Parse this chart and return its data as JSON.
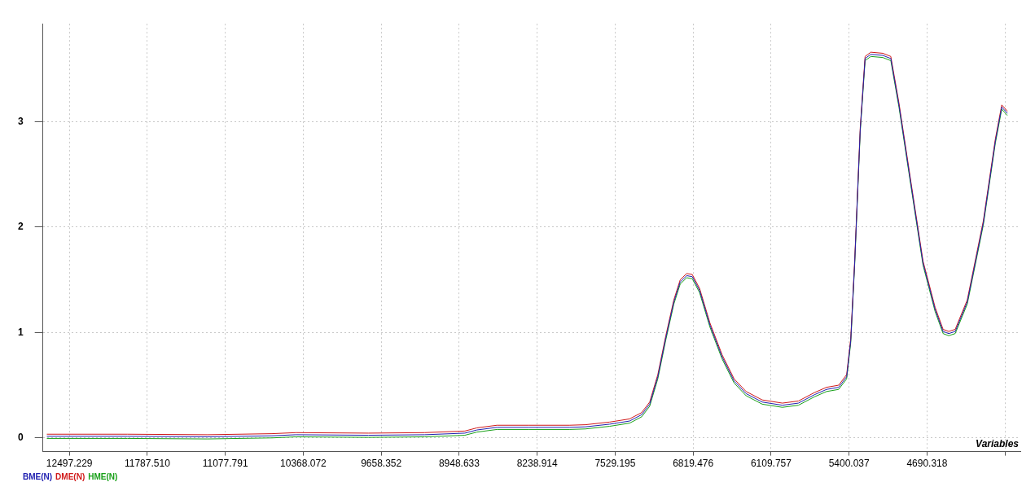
{
  "chart_data": {
    "type": "line",
    "xlabel": "Variables",
    "x": [
      12702,
      11970,
      11239,
      10653,
      10434,
      9775,
      9263,
      8897,
      8788,
      8605,
      8312,
      7946,
      7800,
      7580,
      7398,
      7288,
      7215,
      7141,
      7068,
      6995,
      6937,
      6878,
      6827,
      6761,
      6666,
      6556,
      6446,
      6337,
      6190,
      6007,
      5861,
      5715,
      5605,
      5495,
      5422,
      5385,
      5349,
      5298,
      5254,
      5202,
      5093,
      5020,
      4946,
      4837,
      4727,
      4617,
      4544,
      4493,
      4434,
      4324,
      4178,
      4068,
      4010,
      3959
    ],
    "series": [
      {
        "name": "BME(N)",
        "color": "#2020b0",
        "values": [
          0.015,
          0.015,
          0.01,
          0.02,
          0.03,
          0.025,
          0.03,
          0.045,
          0.075,
          0.1,
          0.1,
          0.1,
          0.105,
          0.13,
          0.16,
          0.22,
          0.32,
          0.58,
          0.95,
          1.29,
          1.48,
          1.54,
          1.53,
          1.4,
          1.07,
          0.77,
          0.54,
          0.42,
          0.34,
          0.31,
          0.33,
          0.41,
          0.46,
          0.48,
          0.58,
          0.92,
          1.66,
          2.93,
          3.6,
          3.64,
          3.63,
          3.6,
          3.16,
          2.41,
          1.66,
          1.22,
          1.01,
          0.99,
          1.01,
          1.29,
          2.04,
          2.82,
          3.14,
          3.08
        ]
      },
      {
        "name": "DME(N)",
        "color": "#d01818",
        "values": [
          0.035,
          0.035,
          0.03,
          0.04,
          0.05,
          0.045,
          0.05,
          0.065,
          0.095,
          0.12,
          0.12,
          0.12,
          0.125,
          0.15,
          0.18,
          0.24,
          0.34,
          0.6,
          0.97,
          1.31,
          1.5,
          1.56,
          1.55,
          1.42,
          1.09,
          0.79,
          0.56,
          0.44,
          0.36,
          0.33,
          0.35,
          0.43,
          0.48,
          0.5,
          0.6,
          0.94,
          1.68,
          2.95,
          3.62,
          3.66,
          3.65,
          3.62,
          3.18,
          2.43,
          1.68,
          1.24,
          1.03,
          1.01,
          1.03,
          1.31,
          2.06,
          2.84,
          3.16,
          3.1
        ]
      },
      {
        "name": "HME(N)",
        "color": "#18a018",
        "values": [
          -0.005,
          -0.005,
          -0.01,
          0,
          0.01,
          0.005,
          0.01,
          0.025,
          0.055,
          0.08,
          0.08,
          0.08,
          0.085,
          0.11,
          0.14,
          0.2,
          0.3,
          0.56,
          0.93,
          1.27,
          1.46,
          1.52,
          1.51,
          1.38,
          1.05,
          0.75,
          0.52,
          0.4,
          0.32,
          0.29,
          0.31,
          0.39,
          0.44,
          0.46,
          0.56,
          0.9,
          1.64,
          2.91,
          3.58,
          3.62,
          3.61,
          3.58,
          3.14,
          2.39,
          1.64,
          1.2,
          0.99,
          0.97,
          0.99,
          1.27,
          2.02,
          2.8,
          3.12,
          3.06
        ]
      }
    ],
    "xlim": [
      12738,
      3841
    ],
    "xticks": [
      12497.229,
      {
        "value": 11787.51,
        "label": "11787.510"
      },
      11077.791,
      10368.072,
      9658.352,
      8948.633,
      8238.914,
      7529.195,
      6819.476,
      6109.757,
      5400.037,
      4690.318,
      {
        "value": 3980.599,
        "label": null
      }
    ],
    "ylim": [
      -0.13,
      3.93
    ],
    "yticks": [
      0,
      1,
      2,
      3
    ],
    "grid": true,
    "legend": "bottom left"
  }
}
